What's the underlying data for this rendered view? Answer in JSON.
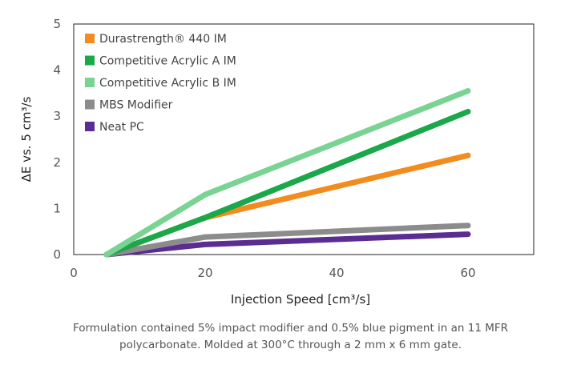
{
  "chart_data": {
    "type": "line",
    "xlabel": "Injection Speed [cm³/s]",
    "ylabel": "ΔE vs. 5 cm³/s",
    "xlim": [
      0,
      70
    ],
    "ylim": [
      0,
      5
    ],
    "xticks": [
      0,
      20,
      40,
      60
    ],
    "yticks": [
      0,
      1,
      2,
      3,
      4,
      5
    ],
    "grid": false,
    "legend_position": "top-left",
    "series": [
      {
        "name": "Durastrength® 440 IM",
        "color": "#f28c1e",
        "x": [
          5,
          20,
          60
        ],
        "y": [
          0,
          0.8,
          2.15
        ]
      },
      {
        "name": "Competitive Acrylic A IM",
        "color": "#1aa84b",
        "x": [
          5,
          20,
          60
        ],
        "y": [
          0,
          0.8,
          3.1
        ]
      },
      {
        "name": "Competitive Acrylic B IM",
        "color": "#79d392",
        "x": [
          5,
          20,
          60
        ],
        "y": [
          0,
          1.3,
          3.55
        ]
      },
      {
        "name": "MBS Modifier",
        "color": "#8c8c8c",
        "x": [
          5,
          20,
          60
        ],
        "y": [
          0,
          0.38,
          0.63
        ]
      },
      {
        "name": "Neat PC",
        "color": "#5b2c91",
        "x": [
          5,
          20,
          60
        ],
        "y": [
          0,
          0.22,
          0.44
        ]
      }
    ]
  },
  "caption": {
    "line1": "Formulation contained 5% impact modifier and 0.5% blue pigment in an 11 MFR",
    "line2": "polycarbonate.  Molded at 300°C through a 2 mm x 6 mm gate."
  }
}
